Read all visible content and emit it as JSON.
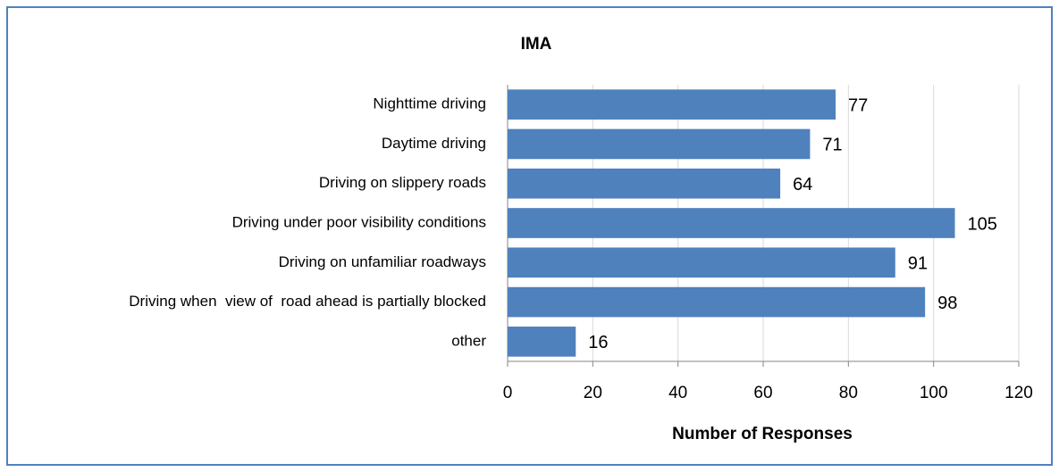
{
  "chart_data": {
    "type": "bar",
    "orientation": "horizontal",
    "title": "IMA",
    "categories": [
      "Nighttime driving",
      "Daytime driving",
      "Driving on slippery roads",
      "Driving under poor visibility conditions",
      "Driving on unfamiliar roadways",
      "Driving when  view of  road ahead is partially blocked",
      "other"
    ],
    "values": [
      77,
      71,
      64,
      105,
      91,
      98,
      16
    ],
    "color": "#4f81bd",
    "xlabel": "Number of Responses",
    "xlim": [
      0,
      120
    ],
    "xticks": [
      0,
      20,
      40,
      60,
      80,
      100,
      120
    ],
    "grid": true
  }
}
